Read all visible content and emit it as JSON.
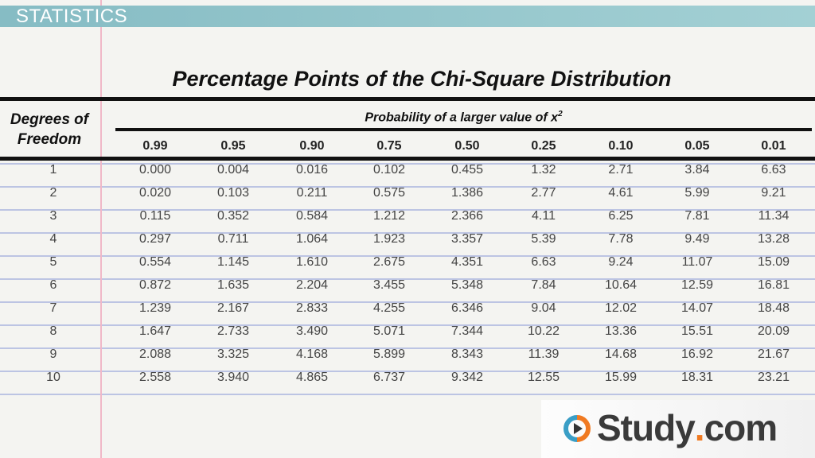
{
  "banner": {
    "label": "STATISTICS",
    "color": "#8fc3c9"
  },
  "title": "Percentage Points of the Chi-Square Distribution",
  "table": {
    "row_header": [
      "Degrees of",
      "Freedom"
    ],
    "group_header": "Probability of a larger value of x",
    "group_header_sup": "2",
    "columns": [
      "0.99",
      "0.95",
      "0.90",
      "0.75",
      "0.50",
      "0.25",
      "0.10",
      "0.05",
      "0.01"
    ],
    "rows": [
      [
        "1",
        "0.000",
        "0.004",
        "0.016",
        "0.102",
        "0.455",
        "1.32",
        "2.71",
        "3.84",
        "6.63"
      ],
      [
        "2",
        "0.020",
        "0.103",
        "0.211",
        "0.575",
        "1.386",
        "2.77",
        "4.61",
        "5.99",
        "9.21"
      ],
      [
        "3",
        "0.115",
        "0.352",
        "0.584",
        "1.212",
        "2.366",
        "4.11",
        "6.25",
        "7.81",
        "11.34"
      ],
      [
        "4",
        "0.297",
        "0.711",
        "1.064",
        "1.923",
        "3.357",
        "5.39",
        "7.78",
        "9.49",
        "13.28"
      ],
      [
        "5",
        "0.554",
        "1.145",
        "1.610",
        "2.675",
        "4.351",
        "6.63",
        "9.24",
        "11.07",
        "15.09"
      ],
      [
        "6",
        "0.872",
        "1.635",
        "2.204",
        "3.455",
        "5.348",
        "7.84",
        "10.64",
        "12.59",
        "16.81"
      ],
      [
        "7",
        "1.239",
        "2.167",
        "2.833",
        "4.255",
        "6.346",
        "9.04",
        "12.02",
        "14.07",
        "18.48"
      ],
      [
        "8",
        "1.647",
        "2.733",
        "3.490",
        "5.071",
        "7.344",
        "10.22",
        "13.36",
        "15.51",
        "20.09"
      ],
      [
        "9",
        "2.088",
        "3.325",
        "4.168",
        "5.899",
        "8.343",
        "11.39",
        "14.68",
        "16.92",
        "21.67"
      ],
      [
        "10",
        "2.558",
        "3.940",
        "4.865",
        "6.737",
        "9.342",
        "12.55",
        "15.99",
        "18.31",
        "23.21"
      ]
    ]
  },
  "logo": {
    "text_main": "Study",
    "text_dot": ".",
    "text_tail": "com",
    "accent": "#f07a22",
    "icon_color": "#3a9ec6"
  }
}
